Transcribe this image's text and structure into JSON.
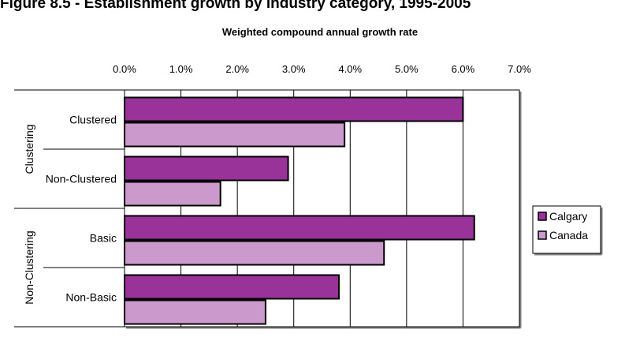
{
  "chart_data": {
    "type": "bar",
    "orientation": "horizontal",
    "title": "Figure 8.5 - Establishment growth by industry category, 1995-2005",
    "xlabel": "Weighted compound annual growth rate",
    "ylabel": "",
    "xlim": [
      0,
      7
    ],
    "xticks": [
      "0.0%",
      "1.0%",
      "2.0%",
      "3.0%",
      "4.0%",
      "5.0%",
      "6.0%",
      "7.0%"
    ],
    "groups": [
      {
        "name": "Clustering",
        "categories": [
          "Clustered",
          "Non-Clustered"
        ]
      },
      {
        "name": "Non-Clustering",
        "categories": [
          "Basic",
          "Non-Basic"
        ]
      }
    ],
    "categories": [
      "Clustered",
      "Non-Clustered",
      "Basic",
      "Non-Basic"
    ],
    "series": [
      {
        "name": "Calgary",
        "values": [
          6.0,
          2.9,
          6.2,
          3.8
        ],
        "color": "#993399"
      },
      {
        "name": "Canada",
        "values": [
          3.9,
          1.7,
          4.6,
          2.5
        ],
        "color": "#cc99cc"
      }
    ],
    "grid": true,
    "legend": "right"
  }
}
